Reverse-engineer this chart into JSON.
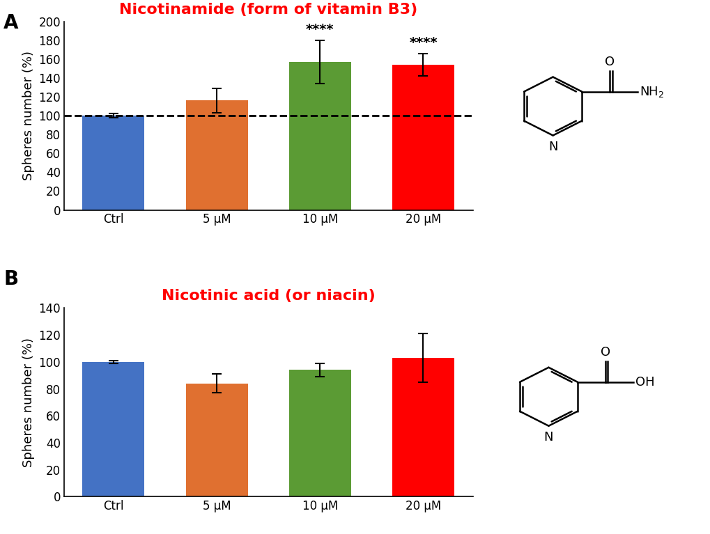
{
  "panel_A": {
    "title": "Nicotinamide (form of vitamin B3)",
    "categories": [
      "Ctrl",
      "5 μM",
      "10 μM",
      "20 μM"
    ],
    "values": [
      100,
      116,
      157,
      154
    ],
    "errors": [
      2,
      13,
      23,
      12
    ],
    "colors": [
      "#4472C4",
      "#E07030",
      "#5B9B34",
      "#FF0000"
    ],
    "ylim": [
      0,
      200
    ],
    "yticks": [
      0,
      20,
      40,
      60,
      80,
      100,
      120,
      140,
      160,
      180,
      200
    ],
    "significance": [
      "",
      "",
      "****",
      "****"
    ],
    "dashed_line": 100,
    "ylabel": "Spheres number (%)"
  },
  "panel_B": {
    "title": "Nicotinic acid (or niacin)",
    "categories": [
      "Ctrl",
      "5 μM",
      "10 μM",
      "20 μM"
    ],
    "values": [
      100,
      84,
      94,
      103
    ],
    "errors": [
      1,
      7,
      5,
      18
    ],
    "colors": [
      "#4472C4",
      "#E07030",
      "#5B9B34",
      "#FF0000"
    ],
    "ylim": [
      0,
      140
    ],
    "yticks": [
      0,
      20,
      40,
      60,
      80,
      100,
      120,
      140
    ],
    "significance": [
      "",
      "",
      "",
      ""
    ],
    "ylabel": "Spheres number (%)"
  },
  "title_color": "#FF0000",
  "label_fontsize": 13,
  "title_fontsize": 16,
  "tick_fontsize": 12,
  "sig_fontsize": 14,
  "panel_label_fontsize": 20
}
